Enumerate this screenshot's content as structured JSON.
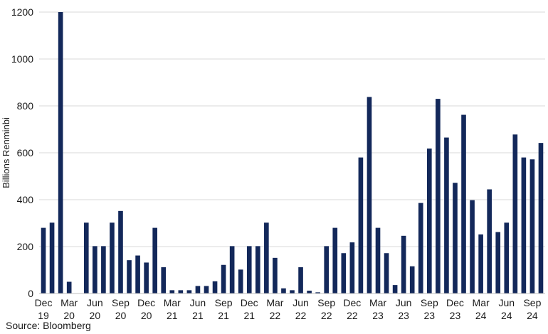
{
  "chart_data": {
    "type": "bar",
    "ylabel": "Billions Renminbi",
    "xlabel": "",
    "ylim": [
      0,
      1200
    ],
    "yticks": [
      0,
      200,
      400,
      600,
      800,
      1000,
      1200
    ],
    "grid": true,
    "colors": {
      "bar": "#13285a",
      "grid": "#d9d9d9",
      "axis": "#bfbfbf"
    },
    "categories": [
      "Dec 19",
      "Jan 20",
      "Feb 20",
      "Mar 20",
      "Apr 20",
      "May 20",
      "Jun 20",
      "Jul 20",
      "Aug 20",
      "Sep 20",
      "Oct 20",
      "Nov 20",
      "Dec 20",
      "Jan 21",
      "Feb 21",
      "Mar 21",
      "Apr 21",
      "May 21",
      "Jun 21",
      "Jul 21",
      "Aug 21",
      "Sep 21",
      "Oct 21",
      "Nov 21",
      "Dec 21",
      "Jan 22",
      "Feb 22",
      "Mar 22",
      "Apr 22",
      "May 22",
      "Jun 22",
      "Jul 22",
      "Aug 22",
      "Sep 22",
      "Oct 22",
      "Nov 22",
      "Dec 22",
      "Jan 23",
      "Feb 23",
      "Mar 23",
      "Apr 23",
      "May 23",
      "Jun 23",
      "Jul 23",
      "Aug 23",
      "Sep 23",
      "Oct 23",
      "Nov 23",
      "Dec 23",
      "Jan 24",
      "Feb 24",
      "Mar 24",
      "Apr 24",
      "May 24",
      "Jun 24",
      "Jul 24",
      "Aug 24",
      "Sep 24",
      "Oct 24"
    ],
    "values": [
      280,
      302,
      1200,
      50,
      0,
      302,
      202,
      202,
      302,
      352,
      142,
      162,
      132,
      280,
      112,
      14,
      14,
      14,
      32,
      32,
      52,
      122,
      202,
      102,
      202,
      202,
      302,
      152,
      22,
      14,
      112,
      12,
      5,
      202,
      280,
      172,
      218,
      580,
      838,
      280,
      172,
      36,
      246,
      116,
      386,
      618,
      830,
      665,
      472,
      762,
      398,
      252,
      444,
      262,
      302,
      678,
      580,
      572,
      642
    ],
    "xtick_labels": [
      {
        "index": 0,
        "month": "Dec",
        "year": "19"
      },
      {
        "index": 3,
        "month": "Mar",
        "year": "20"
      },
      {
        "index": 6,
        "month": "Jun",
        "year": "20"
      },
      {
        "index": 9,
        "month": "Sep",
        "year": "20"
      },
      {
        "index": 12,
        "month": "Dec",
        "year": "20"
      },
      {
        "index": 15,
        "month": "Mar",
        "year": "21"
      },
      {
        "index": 18,
        "month": "Jun",
        "year": "21"
      },
      {
        "index": 21,
        "month": "Sep",
        "year": "21"
      },
      {
        "index": 24,
        "month": "Dec",
        "year": "21"
      },
      {
        "index": 27,
        "month": "Mar",
        "year": "22"
      },
      {
        "index": 30,
        "month": "Jun",
        "year": "22"
      },
      {
        "index": 33,
        "month": "Sep",
        "year": "22"
      },
      {
        "index": 36,
        "month": "Dec",
        "year": "22"
      },
      {
        "index": 39,
        "month": "Mar",
        "year": "23"
      },
      {
        "index": 42,
        "month": "Jun",
        "year": "23"
      },
      {
        "index": 45,
        "month": "Sep",
        "year": "23"
      },
      {
        "index": 48,
        "month": "Dec",
        "year": "23"
      },
      {
        "index": 51,
        "month": "Mar",
        "year": "24"
      },
      {
        "index": 54,
        "month": "Jun",
        "year": "24"
      },
      {
        "index": 57,
        "month": "Sep",
        "year": "24"
      }
    ]
  },
  "source": "Source: Bloomberg"
}
